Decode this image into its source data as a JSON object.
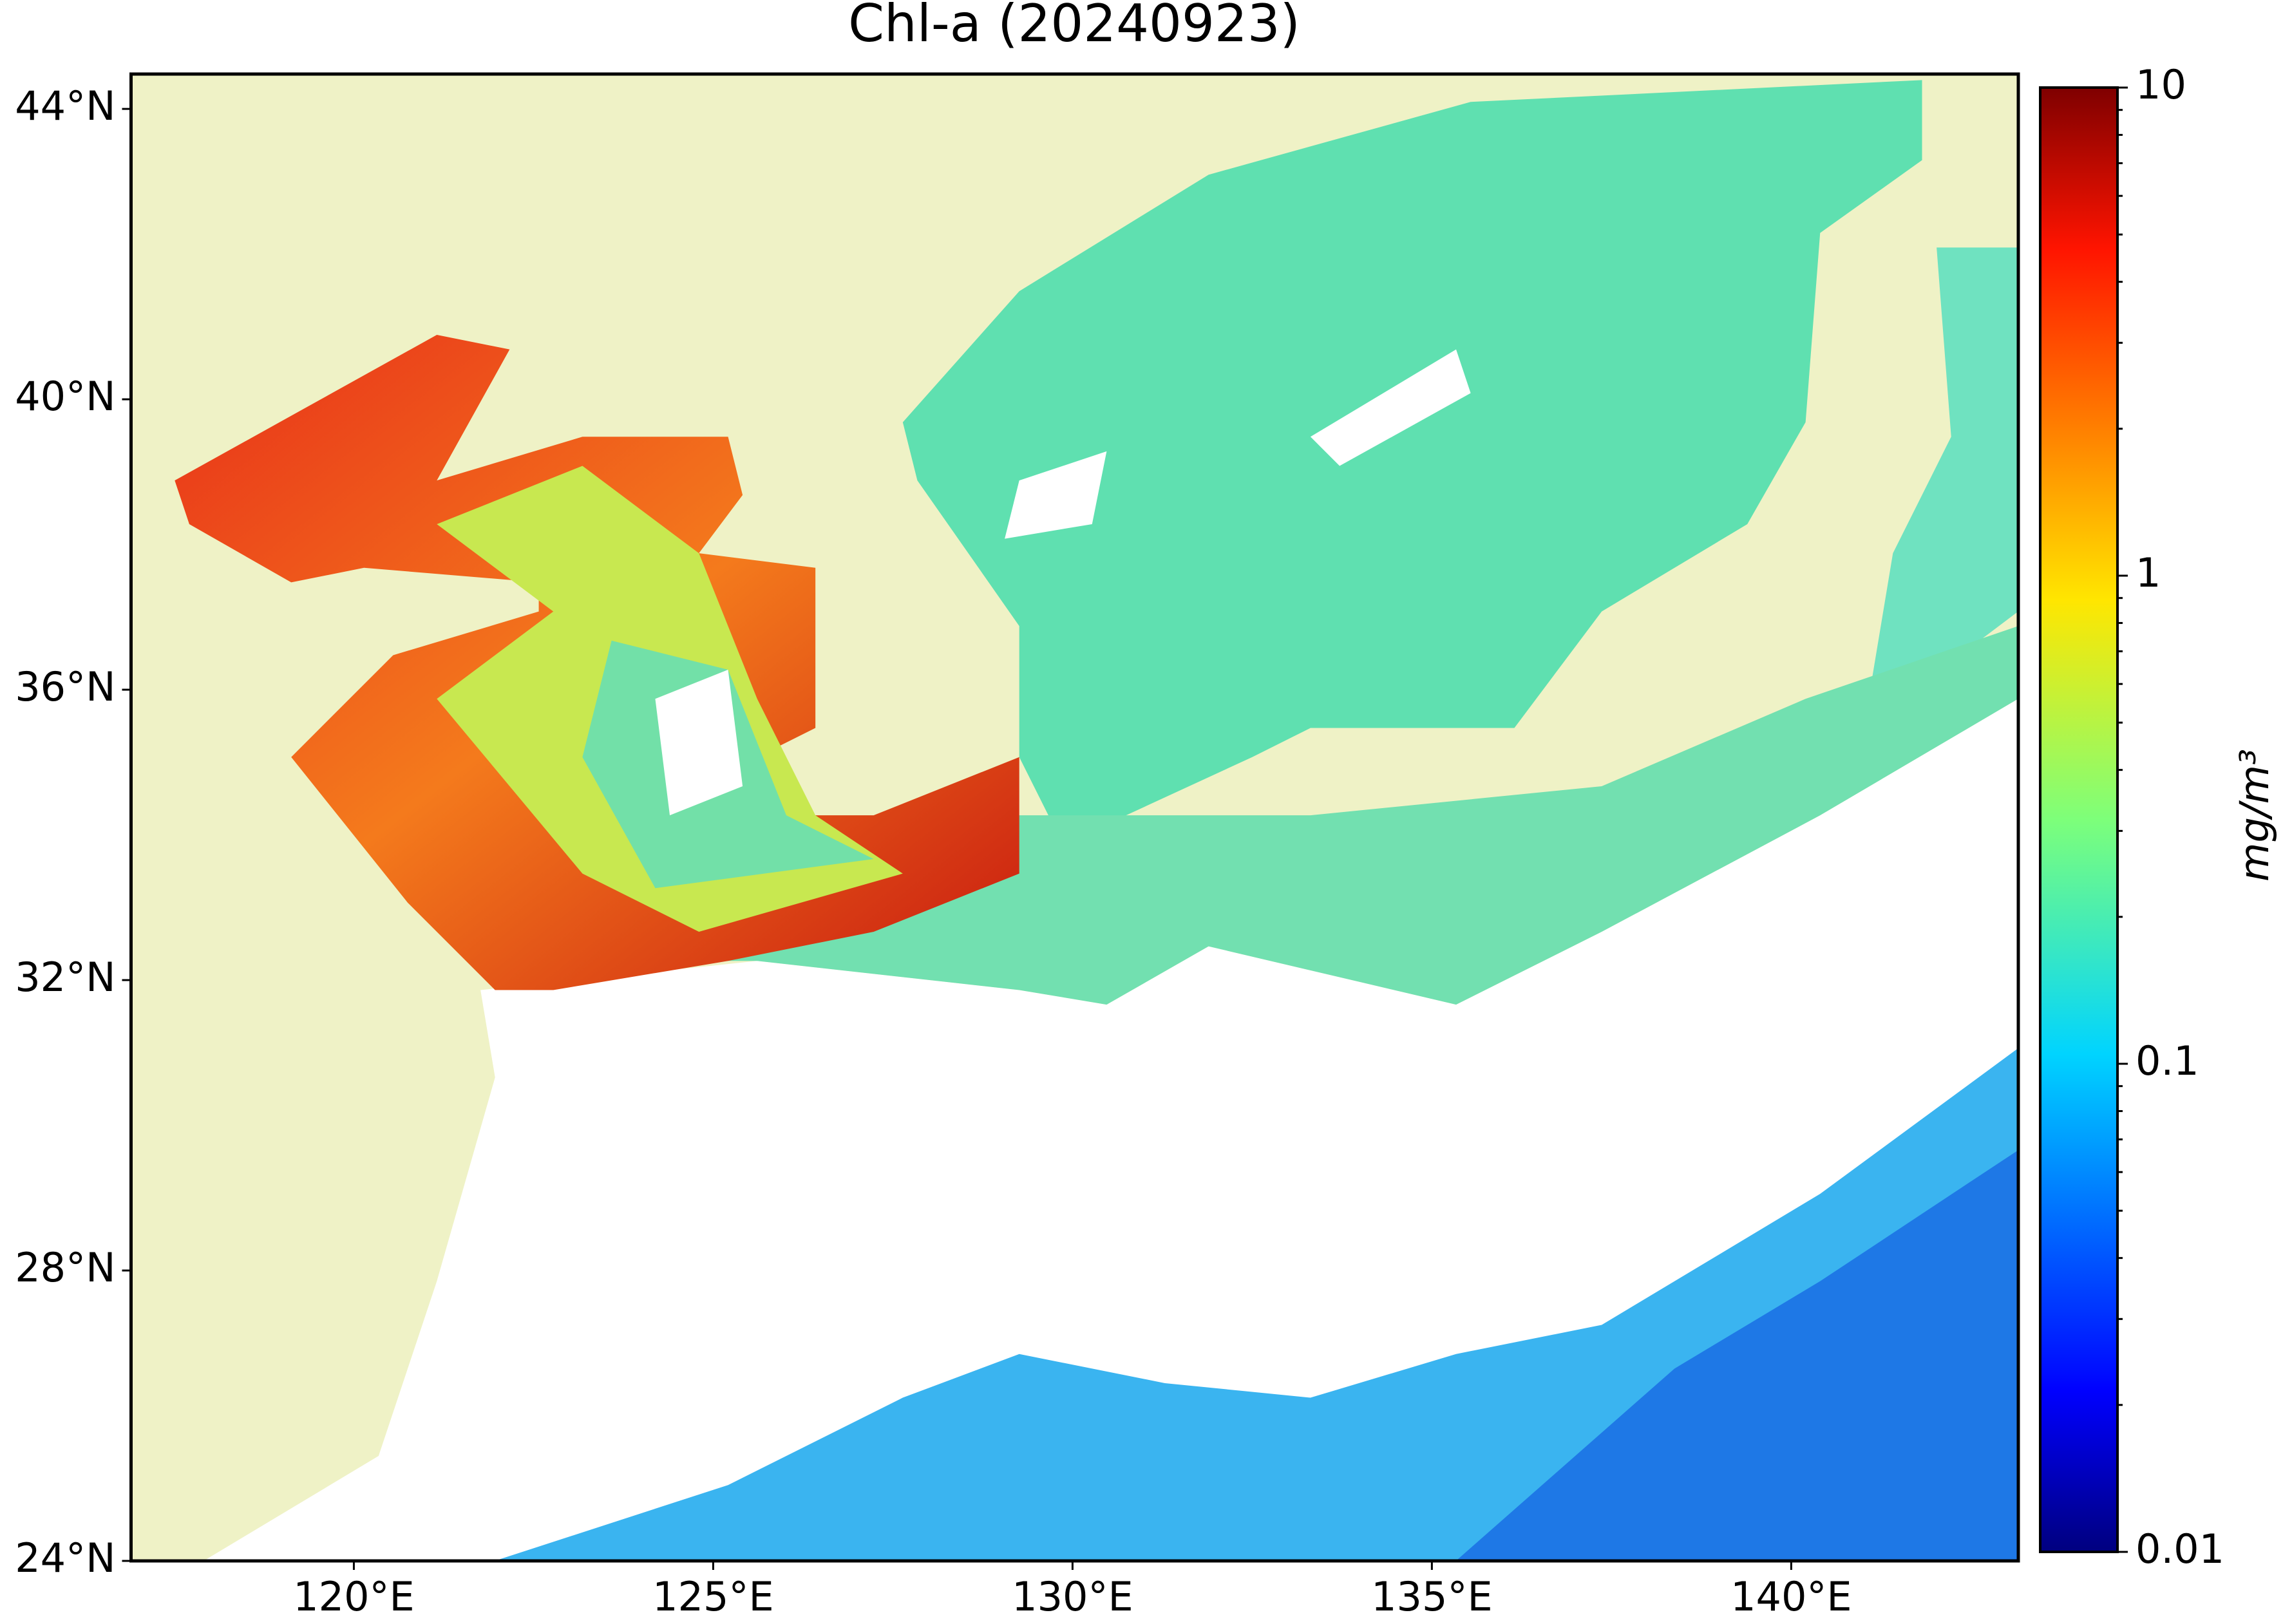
{
  "chart_data": {
    "type": "map",
    "title": "Chl-a (20240923)",
    "xlim": [
      116.9,
      143.16
    ],
    "ylim": [
      24,
      44.48
    ],
    "xticks": [
      {
        "value": 120,
        "label": "120°E"
      },
      {
        "value": 125,
        "label": "125°E"
      },
      {
        "value": 130,
        "label": "130°E"
      },
      {
        "value": 135,
        "label": "135°E"
      },
      {
        "value": 140,
        "label": "140°E"
      }
    ],
    "yticks": [
      {
        "value": 24,
        "label": "24°N"
      },
      {
        "value": 28,
        "label": "28°N"
      },
      {
        "value": 32,
        "label": "32°N"
      },
      {
        "value": 36,
        "label": "36°N"
      },
      {
        "value": 40,
        "label": "40°N"
      },
      {
        "value": 44,
        "label": "44°N"
      }
    ],
    "colorbar": {
      "label": "mg/m³",
      "log_scale": true,
      "lim": [
        0.01,
        10
      ],
      "ticks": [
        0.01,
        0.1,
        1,
        10
      ],
      "minor_ticks": [
        0.02,
        0.03,
        0.04,
        0.05,
        0.06,
        0.07,
        0.08,
        0.09,
        0.2,
        0.3,
        0.4,
        0.5,
        0.6,
        0.7,
        0.8,
        0.9,
        2,
        3,
        4,
        5,
        6,
        7,
        8,
        9
      ]
    }
  }
}
